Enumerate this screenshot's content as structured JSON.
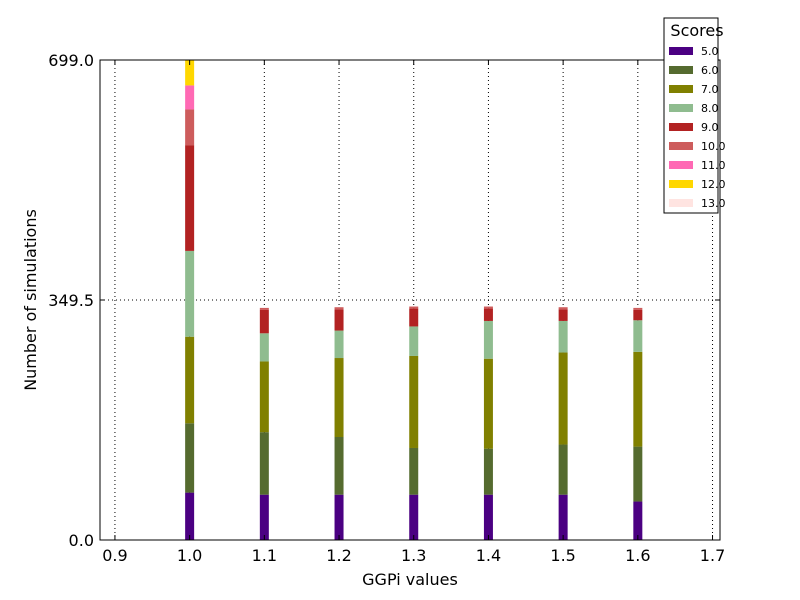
{
  "chart_data": {
    "type": "bar",
    "stacked": true,
    "xlabel": "GGPi values",
    "ylabel": "Number of simulations",
    "xlim": [
      0.88,
      1.71
    ],
    "ylim": [
      0,
      699.0
    ],
    "xticks": [
      "0.9",
      "1.0",
      "1.1",
      "1.2",
      "1.3",
      "1.4",
      "1.5",
      "1.6",
      "1.7"
    ],
    "xtick_values": [
      0.9,
      1.0,
      1.1,
      1.2,
      1.3,
      1.4,
      1.5,
      1.6,
      1.7
    ],
    "yticks": [
      "0.0",
      "349.5",
      "699.0"
    ],
    "ytick_values": [
      0,
      349.5,
      699.0
    ],
    "grid": true,
    "legend": {
      "title": "Scores",
      "position": "top-right"
    },
    "x": [
      1.0,
      1.1,
      1.2,
      1.3,
      1.4,
      1.5,
      1.6
    ],
    "series": [
      {
        "name": "5.0",
        "color": "#4b0082",
        "values": [
          69,
          66,
          66,
          66,
          66,
          66,
          56
        ]
      },
      {
        "name": "6.0",
        "color": "#556b2f",
        "values": [
          101,
          91,
          84,
          68,
          67,
          73,
          80
        ]
      },
      {
        "name": "7.0",
        "color": "#808000",
        "values": [
          126,
          103,
          115,
          134,
          131,
          134,
          138
        ]
      },
      {
        "name": "8.0",
        "color": "#8fbc8f",
        "values": [
          125,
          41,
          40,
          43,
          55,
          46,
          46
        ]
      },
      {
        "name": "9.0",
        "color": "#b22222",
        "values": [
          154,
          34,
          31,
          26,
          18,
          17,
          15
        ]
      },
      {
        "name": "10.0",
        "color": "#cd5c5c",
        "values": [
          52,
          3,
          3,
          3,
          3,
          3,
          3
        ]
      },
      {
        "name": "11.0",
        "color": "#ff69b4",
        "values": [
          35,
          0,
          0,
          0,
          0,
          0,
          0
        ]
      },
      {
        "name": "12.0",
        "color": "#ffd700",
        "values": [
          37,
          0,
          0,
          0,
          0,
          0,
          0
        ]
      },
      {
        "name": "13.0",
        "color": "#ffe4e1",
        "values": [
          0,
          0,
          0,
          0,
          0,
          0,
          0
        ]
      }
    ]
  }
}
